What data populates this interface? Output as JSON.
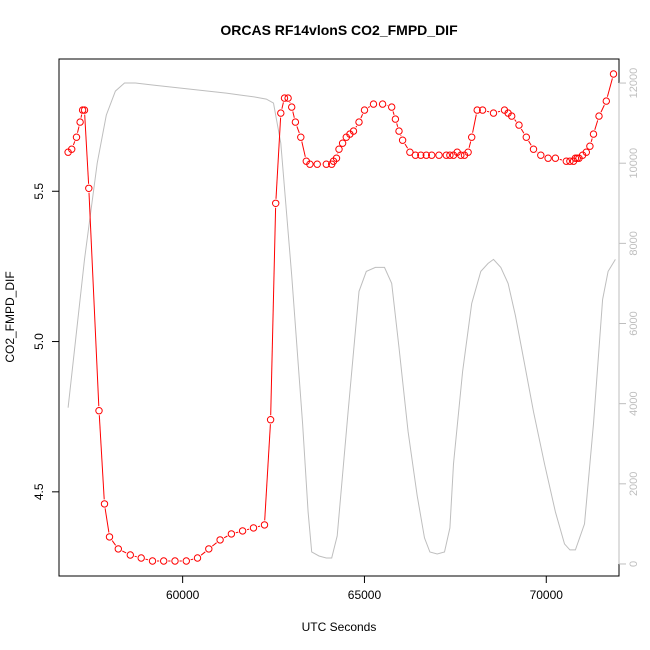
{
  "chart_data": {
    "type": "line",
    "title": "ORCAS RF14vlonS CO2_FMPD_DIF",
    "xlabel": "UTC Seconds",
    "ylabel": "CO2_FMPD_DIF",
    "xlim": [
      56600,
      72000
    ],
    "ylim": [
      4.22,
      5.94
    ],
    "y2lim": [
      -300,
      12600
    ],
    "x_ticks": [
      60000,
      65000,
      70000
    ],
    "y_ticks": [
      4.5,
      5.0,
      5.5
    ],
    "y2_ticks": [
      0,
      2000,
      4000,
      6000,
      8000,
      10000,
      12000
    ],
    "colors": {
      "primary": "#ff0000",
      "secondary": "#bebebe"
    },
    "series": [
      {
        "axis": "left",
        "style": "points-and-lines",
        "x": [
          56850,
          56950,
          57080,
          57180,
          57250,
          57300,
          57420,
          57700,
          57850,
          57990,
          58230,
          58560,
          58860,
          59170,
          59480,
          59790,
          60100,
          60410,
          60720,
          61030,
          61340,
          61650,
          61950,
          62250,
          62420,
          62560,
          62700,
          62800,
          62900,
          63000,
          63100,
          63250,
          63400,
          63500,
          63700,
          63950,
          64100,
          64150,
          64230,
          64300,
          64400,
          64500,
          64600,
          64700,
          64850,
          65000,
          65250,
          65500,
          65750,
          65850,
          65950,
          66050,
          66250,
          66400,
          66550,
          66700,
          66850,
          67050,
          67250,
          67350,
          67450,
          67550,
          67650,
          67750,
          67850,
          67950,
          68100,
          68250,
          68550,
          68850,
          68950,
          69050,
          69250,
          69450,
          69650,
          69850,
          70050,
          70250,
          70550,
          70650,
          70750,
          70800,
          70850,
          70900,
          71000,
          71100,
          71200,
          71300,
          71450,
          71650,
          71850
        ],
        "y": [
          5.63,
          5.64,
          5.68,
          5.73,
          5.77,
          5.77,
          5.51,
          4.77,
          4.46,
          4.35,
          4.31,
          4.29,
          4.28,
          4.27,
          4.27,
          4.27,
          4.27,
          4.28,
          4.31,
          4.34,
          4.36,
          4.37,
          4.38,
          4.39,
          4.74,
          5.46,
          5.76,
          5.81,
          5.81,
          5.78,
          5.73,
          5.68,
          5.6,
          5.59,
          5.59,
          5.59,
          5.59,
          5.6,
          5.61,
          5.64,
          5.66,
          5.68,
          5.69,
          5.7,
          5.73,
          5.77,
          5.79,
          5.79,
          5.78,
          5.74,
          5.7,
          5.67,
          5.63,
          5.62,
          5.62,
          5.62,
          5.62,
          5.62,
          5.62,
          5.62,
          5.62,
          5.63,
          5.62,
          5.62,
          5.63,
          5.68,
          5.77,
          5.77,
          5.76,
          5.77,
          5.76,
          5.75,
          5.72,
          5.68,
          5.64,
          5.62,
          5.61,
          5.61,
          5.6,
          5.6,
          5.6,
          5.61,
          5.61,
          5.61,
          5.62,
          5.63,
          5.65,
          5.69,
          5.75,
          5.8,
          5.89
        ]
      },
      {
        "axis": "right",
        "style": "line",
        "x": [
          56850,
          57300,
          57650,
          57900,
          58150,
          58400,
          58700,
          59200,
          59700,
          60200,
          60700,
          61200,
          61600,
          62000,
          62300,
          62500,
          62700,
          63000,
          63300,
          63450,
          63550,
          63750,
          63950,
          64100,
          64250,
          64550,
          64850,
          65050,
          65300,
          65550,
          65750,
          65950,
          66200,
          66450,
          66650,
          66800,
          67000,
          67200,
          67350,
          67450,
          67700,
          67950,
          68200,
          68400,
          68550,
          68750,
          68950,
          69150,
          69400,
          69650,
          69950,
          70250,
          70500,
          70650,
          70800,
          71050,
          71300,
          71550,
          71700,
          71900
        ],
        "y": [
          3900,
          7600,
          10000,
          11200,
          11800,
          12000,
          12000,
          11950,
          11900,
          11850,
          11800,
          11750,
          11700,
          11650,
          11600,
          11500,
          10500,
          7200,
          3500,
          1300,
          300,
          200,
          150,
          150,
          700,
          3800,
          6800,
          7300,
          7400,
          7400,
          7000,
          5400,
          3300,
          1700,
          650,
          300,
          250,
          300,
          900,
          2500,
          4800,
          6500,
          7300,
          7500,
          7600,
          7400,
          7000,
          6200,
          5000,
          3800,
          2500,
          1300,
          500,
          350,
          350,
          1000,
          3500,
          6600,
          7300,
          7600
        ]
      }
    ]
  }
}
